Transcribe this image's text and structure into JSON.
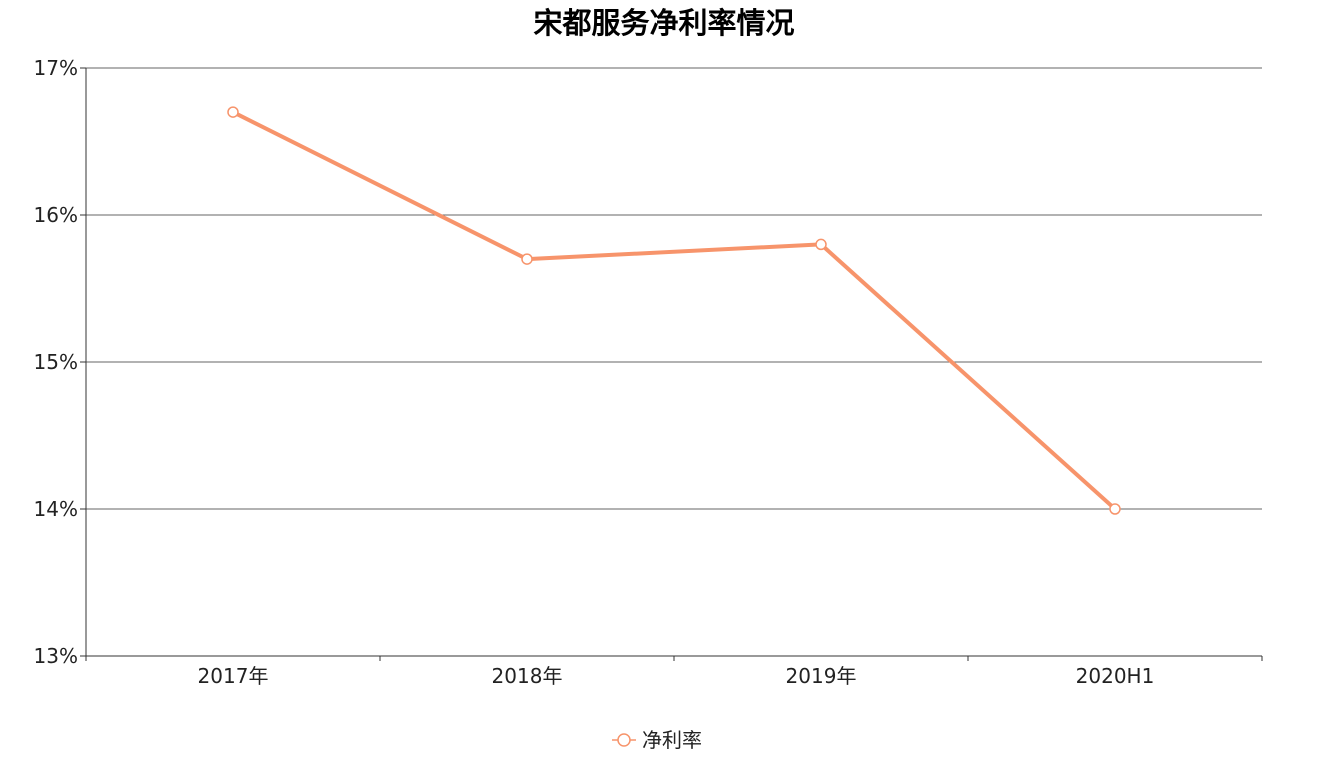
{
  "chart_data": {
    "type": "line",
    "title": "宋都服务净利率情况",
    "categories": [
      "2017年",
      "2018年",
      "2019年",
      "2020H1"
    ],
    "series": [
      {
        "name": "净利率",
        "values": [
          16.7,
          15.7,
          15.8,
          14.0
        ],
        "color": "#f7946b"
      }
    ],
    "y_axis": {
      "min": 13,
      "max": 17,
      "ticks": [
        13,
        14,
        15,
        16,
        17
      ],
      "tick_labels": [
        "13%",
        "14%",
        "15%",
        "16%",
        "17%"
      ]
    },
    "grid": true,
    "legend": "bottom-center"
  }
}
